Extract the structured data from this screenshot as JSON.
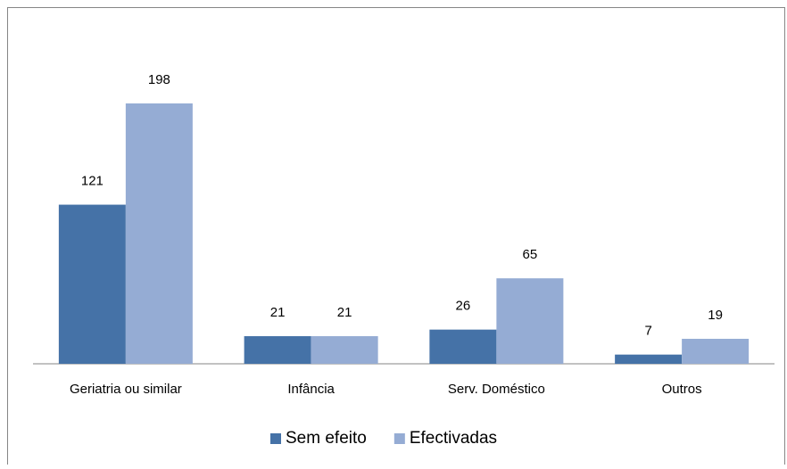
{
  "chart_data": {
    "type": "bar",
    "categories": [
      "Geriatria ou similar",
      "Infância",
      "Serv. Doméstico",
      "Outros"
    ],
    "series": [
      {
        "name": "Sem efeito",
        "color": "#4572a7",
        "values": [
          121,
          21,
          26,
          7
        ]
      },
      {
        "name": "Efectivadas",
        "color": "#95acd4",
        "values": [
          198,
          21,
          65,
          19
        ]
      }
    ],
    "legend": "bottom"
  }
}
